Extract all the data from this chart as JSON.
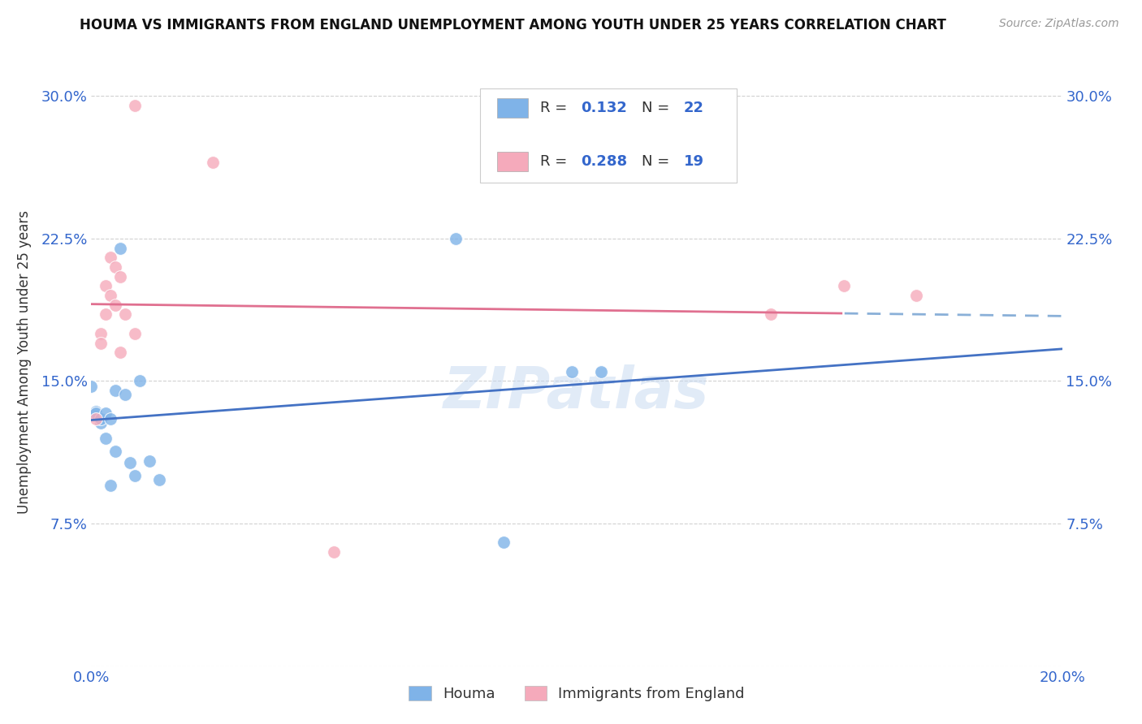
{
  "title": "HOUMA VS IMMIGRANTS FROM ENGLAND UNEMPLOYMENT AMONG YOUTH UNDER 25 YEARS CORRELATION CHART",
  "source": "Source: ZipAtlas.com",
  "ylabel": "Unemployment Among Youth under 25 years",
  "xmin": 0.0,
  "xmax": 0.2,
  "ymin": 0.0,
  "ymax": 0.32,
  "yticks": [
    0.0,
    0.075,
    0.15,
    0.225,
    0.3
  ],
  "ytick_labels": [
    "",
    "7.5%",
    "15.0%",
    "22.5%",
    "30.0%"
  ],
  "houma_x": [
    0.0,
    0.001,
    0.001,
    0.002,
    0.002,
    0.003,
    0.003,
    0.004,
    0.004,
    0.005,
    0.005,
    0.006,
    0.007,
    0.008,
    0.009,
    0.01,
    0.012,
    0.014,
    0.075,
    0.085,
    0.099,
    0.105
  ],
  "houma_y": [
    0.147,
    0.134,
    0.133,
    0.128,
    0.13,
    0.133,
    0.12,
    0.095,
    0.13,
    0.113,
    0.145,
    0.22,
    0.143,
    0.107,
    0.1,
    0.15,
    0.108,
    0.098,
    0.225,
    0.065,
    0.155,
    0.155
  ],
  "england_x": [
    0.001,
    0.002,
    0.002,
    0.003,
    0.003,
    0.004,
    0.004,
    0.005,
    0.005,
    0.006,
    0.006,
    0.007,
    0.009,
    0.009,
    0.025,
    0.05,
    0.14,
    0.155,
    0.17
  ],
  "england_y": [
    0.13,
    0.175,
    0.17,
    0.2,
    0.185,
    0.195,
    0.215,
    0.19,
    0.21,
    0.205,
    0.165,
    0.185,
    0.175,
    0.295,
    0.265,
    0.06,
    0.185,
    0.2,
    0.195
  ],
  "houma_color": "#7fb3e8",
  "england_color": "#f5aabb",
  "houma_line_color": "#4472c4",
  "england_line_color": "#e07090",
  "dashed_line_color": "#8ab0d8",
  "r_houma": "0.132",
  "n_houma": "22",
  "r_england": "0.288",
  "n_england": "19",
  "watermark": "ZIPatlas",
  "legend_label_houma": "Houma",
  "legend_label_england": "Immigrants from England",
  "title_fontsize": 12,
  "source_fontsize": 10,
  "tick_fontsize": 13,
  "ylabel_fontsize": 12
}
